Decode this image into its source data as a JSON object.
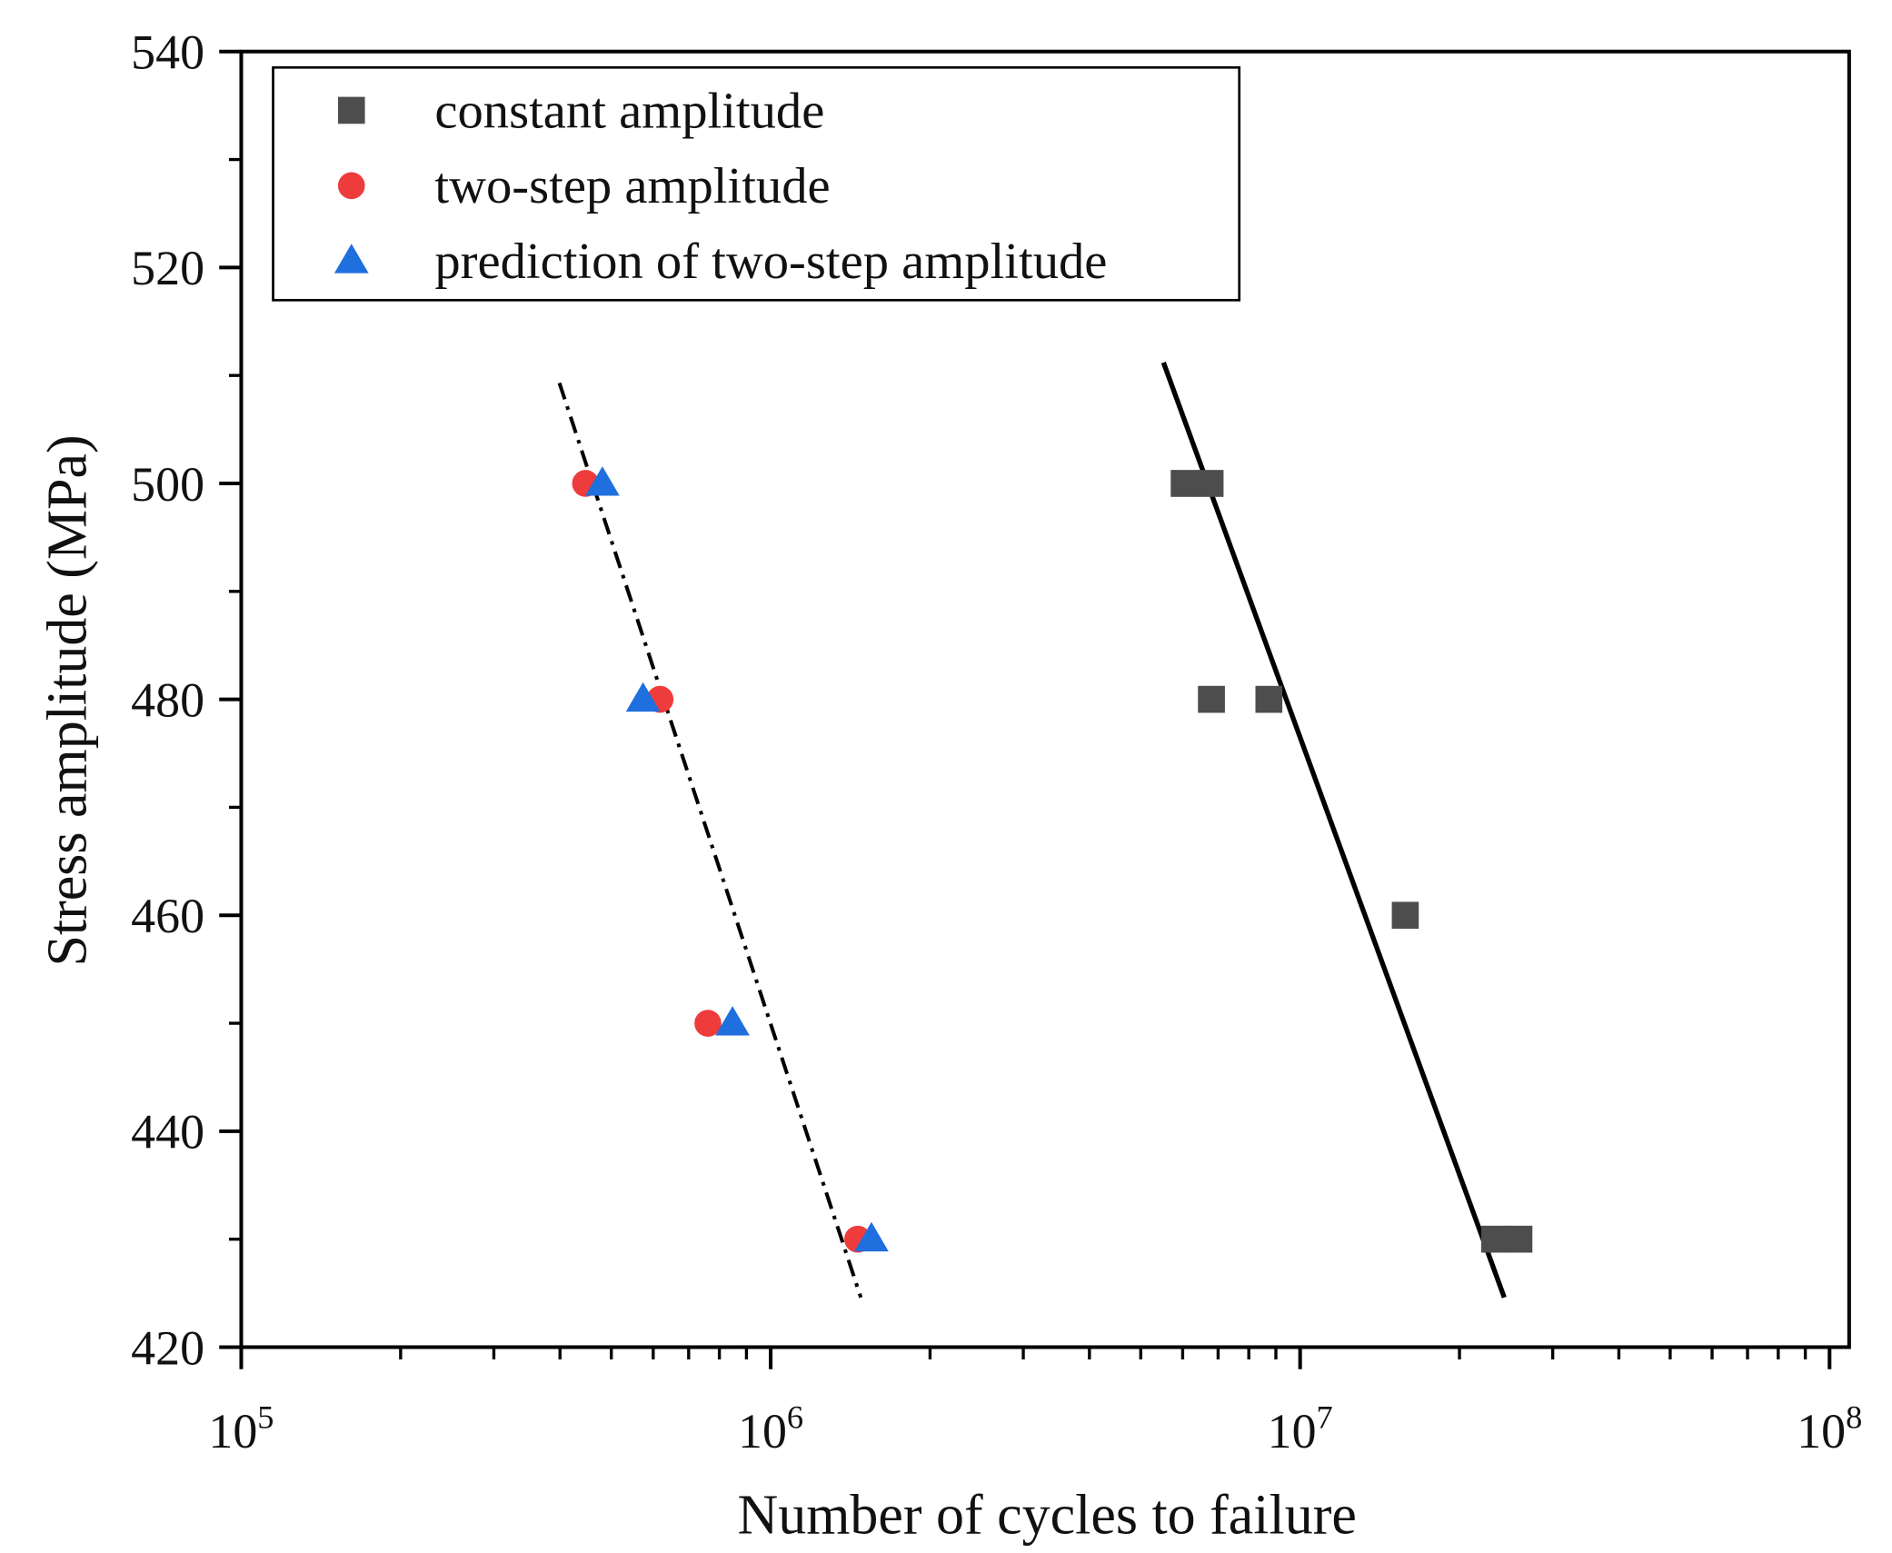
{
  "chart_data": {
    "type": "scatter",
    "title": "",
    "xlabel": "Number of cycles to failure",
    "ylabel": "Stress amplitude (MPa)",
    "xscale": "log",
    "xlim": [
      100000,
      100000000
    ],
    "ylim": [
      420,
      540
    ],
    "x_ticks": [
      {
        "base": "10",
        "exp": "5",
        "value": 100000
      },
      {
        "base": "10",
        "exp": "6",
        "value": 1000000
      },
      {
        "base": "10",
        "exp": "7",
        "value": 10000000
      },
      {
        "base": "10",
        "exp": "8",
        "value": 100000000
      }
    ],
    "y_ticks": [
      "420",
      "440",
      "460",
      "480",
      "500",
      "520",
      "540"
    ],
    "grid": false,
    "legend_position": "top-left",
    "series": [
      {
        "name": "constant amplitude",
        "marker": "square",
        "color": "#4d4d4d",
        "points": [
          [
            6040000,
            500
          ],
          [
            6760000,
            500
          ],
          [
            6800000,
            480
          ],
          [
            8730000,
            480
          ],
          [
            15800000,
            460
          ],
          [
            23300000,
            430
          ],
          [
            25900000,
            430
          ]
        ]
      },
      {
        "name": "two-step amplitude",
        "marker": "circle",
        "color": "#ee3b3b",
        "points": [
          [
            447000,
            500
          ],
          [
            618000,
            480
          ],
          [
            761000,
            450
          ],
          [
            1460000,
            430
          ]
        ]
      },
      {
        "name": "prediction of two-step amplitude",
        "marker": "triangle",
        "color": "#1f6fde",
        "points": [
          [
            481000,
            500
          ],
          [
            574000,
            480
          ],
          [
            847000,
            450
          ],
          [
            1550000,
            430
          ]
        ]
      }
    ],
    "fit_lines": [
      {
        "style": "dash-dot",
        "color": "#000000",
        "from": [
          399000,
          509.3
        ],
        "to": [
          1480000,
          424.6
        ]
      },
      {
        "style": "solid",
        "color": "#000000",
        "from": [
          5520000,
          511.2
        ],
        "to": [
          24300000,
          424.6
        ]
      }
    ]
  }
}
